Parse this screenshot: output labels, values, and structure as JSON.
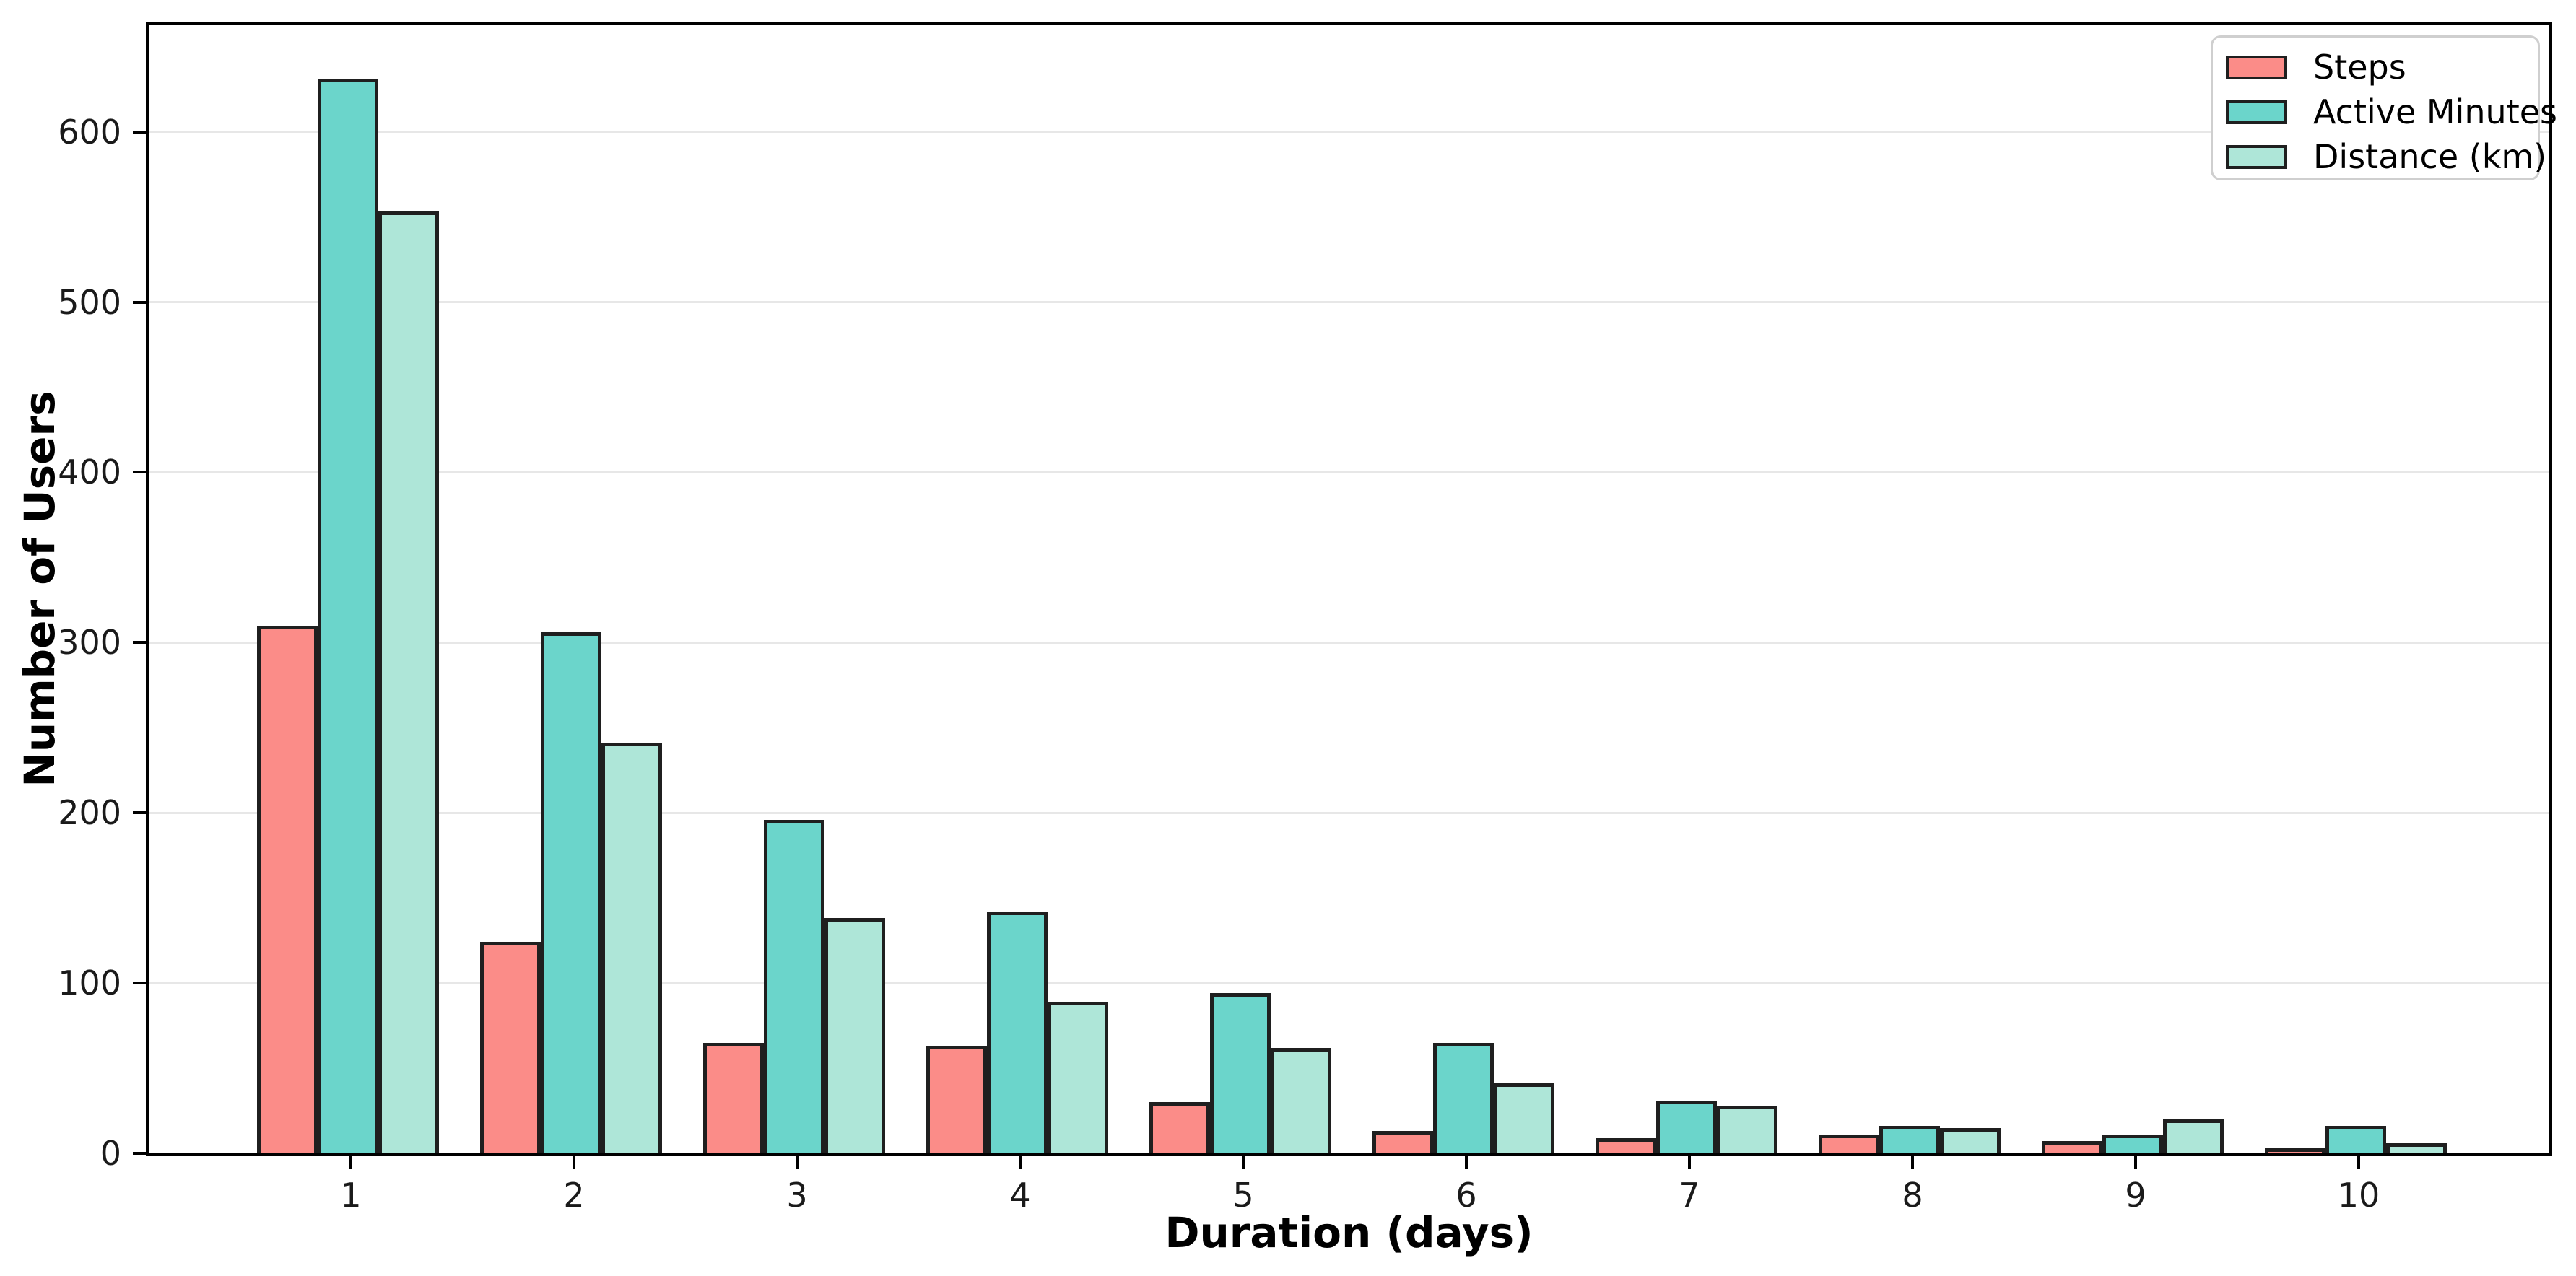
{
  "chart_data": {
    "type": "bar",
    "title": "",
    "xlabel": "Duration (days)",
    "ylabel": "Number of Users",
    "categories": [
      "1",
      "2",
      "3",
      "4",
      "5",
      "6",
      "7",
      "8",
      "9",
      "10"
    ],
    "series": [
      {
        "name": "Steps",
        "color": "#FB8C88",
        "values": [
          310,
          124,
          65,
          63,
          30,
          13,
          9,
          11,
          7,
          3
        ]
      },
      {
        "name": "Active Minutes",
        "color": "#6BD5CB",
        "values": [
          631,
          306,
          196,
          142,
          94,
          65,
          31,
          16,
          11,
          16
        ]
      },
      {
        "name": "Distance (km)",
        "color": "#AEE6D8",
        "values": [
          553,
          241,
          138,
          89,
          62,
          41,
          28,
          15,
          20,
          6
        ]
      }
    ],
    "ylim": [
      0,
      663
    ],
    "yticks": [
      0,
      100,
      200,
      300,
      400,
      500,
      600
    ],
    "grid": "horizontal",
    "legend_position": "upper-right",
    "styles": {
      "bar_edge_color": "#1f1f1f",
      "grid_color": "#e7e7e7",
      "spine_color": "#000000",
      "background": "#ffffff"
    }
  }
}
